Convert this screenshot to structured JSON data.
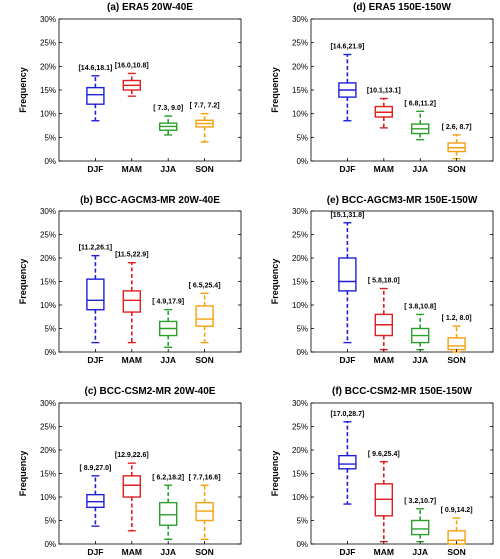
{
  "chart_data": [
    {
      "type": "box",
      "title": "(a)  ERA5    20W-40E",
      "ylabel": "Frequency",
      "ylim": [
        0,
        30
      ],
      "yticks": [
        "0%",
        "5%",
        "10%",
        "15%",
        "20%",
        "25%",
        "30%"
      ],
      "categories": [
        "DJF",
        "MAM",
        "JJA",
        "SON"
      ],
      "colors": [
        "#1f1fd6",
        "#e01f1f",
        "#2ca02c",
        "#f5a00f"
      ],
      "annotations": [
        "[14.6,18.1]",
        "[16.0,10.8]",
        "[ 7.3, 9.0]",
        "[ 7.7, 7.2]"
      ],
      "boxes": [
        {
          "whislo": 8.5,
          "q1": 12.0,
          "med": 14.0,
          "q3": 15.5,
          "whishi": 18.0
        },
        {
          "whislo": 13.7,
          "q1": 15.0,
          "med": 16.0,
          "q3": 17.0,
          "whishi": 18.5
        },
        {
          "whislo": 5.5,
          "q1": 6.5,
          "med": 7.3,
          "q3": 8.0,
          "whishi": 9.5
        },
        {
          "whislo": 4.0,
          "q1": 7.2,
          "med": 7.9,
          "q3": 8.6,
          "whishi": 10.0
        }
      ]
    },
    {
      "type": "box",
      "title": "(d)  ERA5    150E-150W",
      "ylabel": "Frequency",
      "ylim": [
        0,
        30
      ],
      "yticks": [
        "0%",
        "5%",
        "10%",
        "15%",
        "20%",
        "25%",
        "30%"
      ],
      "categories": [
        "DJF",
        "MAM",
        "JJA",
        "SON"
      ],
      "colors": [
        "#1f1fd6",
        "#e01f1f",
        "#2ca02c",
        "#f5a00f"
      ],
      "annotations": [
        "[14.6,21.9]",
        "[10.1,13.1]",
        "[ 6.8,11.2]",
        "[ 2.6, 8.7]"
      ],
      "boxes": [
        {
          "whislo": 8.5,
          "q1": 13.5,
          "med": 15.0,
          "q3": 16.5,
          "whishi": 22.5
        },
        {
          "whislo": 7.0,
          "q1": 9.3,
          "med": 10.3,
          "q3": 11.5,
          "whishi": 13.2
        },
        {
          "whislo": 4.5,
          "q1": 5.8,
          "med": 6.8,
          "q3": 7.8,
          "whishi": 10.5
        },
        {
          "whislo": 0.5,
          "q1": 2.0,
          "med": 2.8,
          "q3": 3.8,
          "whishi": 5.5
        }
      ]
    },
    {
      "type": "box",
      "title": "(b)  BCC-AGCM3-MR    20W-40E",
      "ylabel": "Frequency",
      "ylim": [
        0,
        30
      ],
      "yticks": [
        "0%",
        "5%",
        "10%",
        "15%",
        "20%",
        "25%",
        "30%"
      ],
      "categories": [
        "DJF",
        "MAM",
        "JJA",
        "SON"
      ],
      "colors": [
        "#1f1fd6",
        "#e01f1f",
        "#2ca02c",
        "#f5a00f"
      ],
      "annotations": [
        "[11.2,26.1]",
        "[11.5,22.9]",
        "[ 4.9,17.9]",
        "[ 6.5,25.4]"
      ],
      "boxes": [
        {
          "whislo": 2.0,
          "q1": 9.0,
          "med": 11.0,
          "q3": 15.5,
          "whishi": 20.5
        },
        {
          "whislo": 2.0,
          "q1": 8.5,
          "med": 11.0,
          "q3": 13.0,
          "whishi": 19.0
        },
        {
          "whislo": 1.0,
          "q1": 3.5,
          "med": 5.0,
          "q3": 6.5,
          "whishi": 9.0
        },
        {
          "whislo": 2.0,
          "q1": 5.5,
          "med": 7.0,
          "q3": 9.8,
          "whishi": 12.5
        }
      ]
    },
    {
      "type": "box",
      "title": "(e)  BCC-AGCM3-MR    150E-150W",
      "ylabel": "Frequency",
      "ylim": [
        0,
        30
      ],
      "yticks": [
        "0%",
        "5%",
        "10%",
        "15%",
        "20%",
        "25%",
        "30%"
      ],
      "categories": [
        "DJF",
        "MAM",
        "JJA",
        "SON"
      ],
      "colors": [
        "#1f1fd6",
        "#e01f1f",
        "#2ca02c",
        "#f5a00f"
      ],
      "annotations": [
        "[15.1,31.8]",
        "[ 5.8,18.0]",
        "[ 3.8,10.8]",
        "[ 1.2, 8.0]"
      ],
      "boxes": [
        {
          "whislo": 2.0,
          "q1": 13.0,
          "med": 15.0,
          "q3": 20.0,
          "whishi": 27.5
        },
        {
          "whislo": 0.5,
          "q1": 3.5,
          "med": 5.8,
          "q3": 8.0,
          "whishi": 13.5
        },
        {
          "whislo": 0.5,
          "q1": 2.0,
          "med": 3.5,
          "q3": 5.0,
          "whishi": 8.0
        },
        {
          "whislo": 0.0,
          "q1": 0.5,
          "med": 1.3,
          "q3": 3.0,
          "whishi": 5.5
        }
      ]
    },
    {
      "type": "box",
      "title": "(c)  BCC-CSM2-MR    20W-40E",
      "ylabel": "Frequency",
      "ylim": [
        0,
        30
      ],
      "yticks": [
        "0%",
        "5%",
        "10%",
        "15%",
        "20%",
        "25%",
        "30%"
      ],
      "categories": [
        "DJF",
        "MAM",
        "JJA",
        "SON"
      ],
      "colors": [
        "#1f1fd6",
        "#e01f1f",
        "#2ca02c",
        "#f5a00f"
      ],
      "annotations": [
        "[ 8.9,27.0]",
        "[12.9,22.6]",
        "[ 6.2,18.2]",
        "[ 7.7,16.6]"
      ],
      "boxes": [
        {
          "whislo": 3.8,
          "q1": 7.8,
          "med": 9.0,
          "q3": 10.5,
          "whishi": 14.5
        },
        {
          "whislo": 2.8,
          "q1": 10.0,
          "med": 12.5,
          "q3": 14.5,
          "whishi": 17.2
        },
        {
          "whislo": 1.0,
          "q1": 4.0,
          "med": 6.2,
          "q3": 8.8,
          "whishi": 12.5
        },
        {
          "whislo": 1.0,
          "q1": 5.0,
          "med": 7.0,
          "q3": 8.8,
          "whishi": 12.5
        }
      ]
    },
    {
      "type": "box",
      "title": "(f)  BCC-CSM2-MR    150E-150W",
      "ylabel": "Frequency",
      "ylim": [
        0,
        30
      ],
      "yticks": [
        "0%",
        "5%",
        "10%",
        "15%",
        "20%",
        "25%",
        "30%"
      ],
      "categories": [
        "DJF",
        "MAM",
        "JJA",
        "SON"
      ],
      "colors": [
        "#1f1fd6",
        "#e01f1f",
        "#2ca02c",
        "#f5a00f"
      ],
      "annotations": [
        "[17.0,28.7]",
        "[ 9.6,25.4]",
        "[ 3.2,10.7]",
        "[ 0.9,14.2]"
      ],
      "boxes": [
        {
          "whislo": 8.5,
          "q1": 16.0,
          "med": 17.0,
          "q3": 18.8,
          "whishi": 26.0
        },
        {
          "whislo": 0.5,
          "q1": 6.0,
          "med": 9.5,
          "q3": 12.8,
          "whishi": 17.5
        },
        {
          "whislo": 0.5,
          "q1": 2.0,
          "med": 3.2,
          "q3": 5.0,
          "whishi": 7.5
        },
        {
          "whislo": 0.0,
          "q1": 0.0,
          "med": 0.8,
          "q3": 2.8,
          "whishi": 5.5
        }
      ]
    }
  ]
}
